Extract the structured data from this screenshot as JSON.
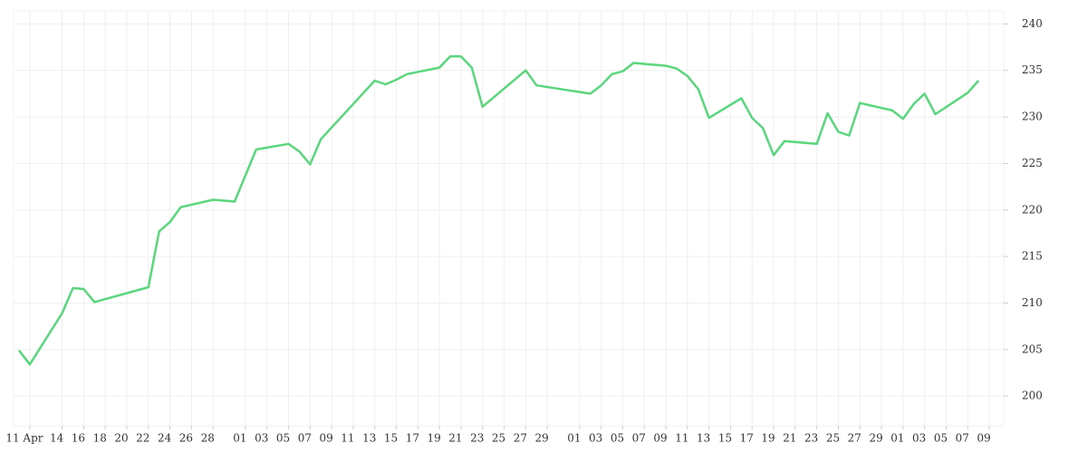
{
  "chart_data": {
    "type": "line",
    "color": "#5ad67d",
    "grid": true,
    "x": [
      "04-10",
      "04-11",
      "04-14",
      "04-15",
      "04-16",
      "04-17",
      "04-22",
      "04-23",
      "04-24",
      "04-25",
      "04-28",
      "04-30",
      "05-02",
      "05-05",
      "05-06",
      "05-07",
      "05-08",
      "05-13",
      "05-14",
      "05-15",
      "05-16",
      "05-19",
      "05-20",
      "05-21",
      "05-22",
      "05-23",
      "05-27",
      "05-28",
      "06-02",
      "06-03",
      "06-04",
      "06-05",
      "06-06",
      "06-09",
      "06-10",
      "06-11",
      "06-12",
      "06-13",
      "06-16",
      "06-17",
      "06-18",
      "06-19",
      "06-20",
      "06-23",
      "06-24",
      "06-25",
      "06-26",
      "06-27",
      "06-30",
      "07-01",
      "07-02",
      "07-03",
      "07-04",
      "07-07",
      "07-08"
    ],
    "values": [
      204.9,
      203.4,
      208.9,
      211.6,
      211.5,
      210.1,
      211.7,
      217.7,
      218.7,
      220.3,
      221.1,
      220.9,
      226.5,
      227.1,
      226.3,
      224.9,
      227.6,
      233.9,
      233.5,
      234.0,
      234.6,
      235.3,
      236.5,
      236.5,
      235.3,
      231.1,
      235.0,
      233.4,
      232.5,
      233.4,
      234.6,
      234.9,
      235.8,
      235.5,
      235.2,
      234.4,
      233.0,
      229.9,
      232.0,
      229.9,
      228.8,
      225.9,
      227.4,
      227.1,
      230.4,
      228.4,
      228.0,
      231.5,
      230.7,
      229.8,
      231.4,
      232.5,
      230.3,
      232.6,
      233.9
    ],
    "xlim": [
      "04-10",
      "07-10"
    ],
    "xticks": [
      {
        "value": "04-11",
        "label": "11 Apr"
      },
      {
        "value": "04-14",
        "label": "14"
      },
      {
        "value": "04-16",
        "label": "16"
      },
      {
        "value": "04-18",
        "label": "18"
      },
      {
        "value": "04-20",
        "label": "20"
      },
      {
        "value": "04-22",
        "label": "22"
      },
      {
        "value": "04-24",
        "label": "24"
      },
      {
        "value": "04-26",
        "label": "26"
      },
      {
        "value": "04-28",
        "label": "28"
      },
      {
        "value": "05-01",
        "label": "01"
      },
      {
        "value": "05-03",
        "label": "03"
      },
      {
        "value": "05-05",
        "label": "05"
      },
      {
        "value": "05-07",
        "label": "07"
      },
      {
        "value": "05-09",
        "label": "09"
      },
      {
        "value": "05-11",
        "label": "11"
      },
      {
        "value": "05-13",
        "label": "13"
      },
      {
        "value": "05-15",
        "label": "15"
      },
      {
        "value": "05-17",
        "label": "17"
      },
      {
        "value": "05-19",
        "label": "19"
      },
      {
        "value": "05-21",
        "label": "21"
      },
      {
        "value": "05-23",
        "label": "23"
      },
      {
        "value": "05-25",
        "label": "25"
      },
      {
        "value": "05-27",
        "label": "27"
      },
      {
        "value": "05-29",
        "label": "29"
      },
      {
        "value": "06-01",
        "label": "01"
      },
      {
        "value": "06-03",
        "label": "03"
      },
      {
        "value": "06-05",
        "label": "05"
      },
      {
        "value": "06-07",
        "label": "07"
      },
      {
        "value": "06-09",
        "label": "09"
      },
      {
        "value": "06-11",
        "label": "11"
      },
      {
        "value": "06-13",
        "label": "13"
      },
      {
        "value": "06-15",
        "label": "15"
      },
      {
        "value": "06-17",
        "label": "17"
      },
      {
        "value": "06-19",
        "label": "19"
      },
      {
        "value": "06-21",
        "label": "21"
      },
      {
        "value": "06-23",
        "label": "23"
      },
      {
        "value": "06-25",
        "label": "25"
      },
      {
        "value": "06-27",
        "label": "27"
      },
      {
        "value": "06-29",
        "label": "29"
      },
      {
        "value": "07-01",
        "label": "01"
      },
      {
        "value": "07-03",
        "label": "03"
      },
      {
        "value": "07-05",
        "label": "05"
      },
      {
        "value": "07-07",
        "label": "07"
      },
      {
        "value": "07-09",
        "label": "09"
      }
    ],
    "ylim": [
      196.8,
      241.4
    ],
    "yticks": [
      200,
      205,
      210,
      215,
      220,
      225,
      230,
      235,
      240
    ]
  }
}
